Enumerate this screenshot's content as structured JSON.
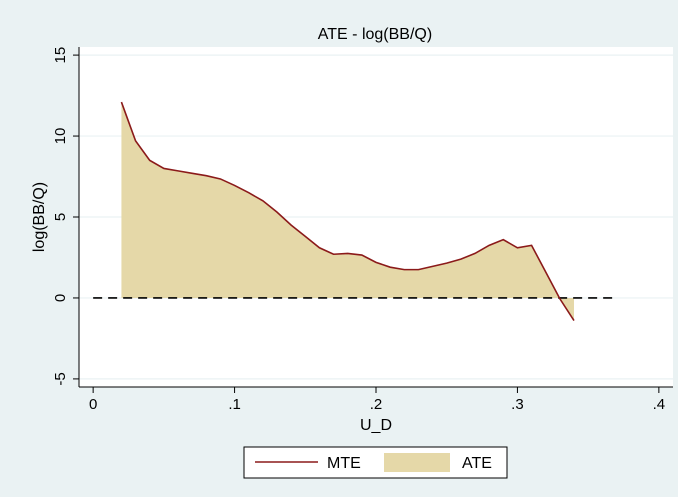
{
  "chart_data": {
    "type": "area",
    "title": "ATE - log(BB/Q)",
    "xlabel": "U_D",
    "ylabel": "log(BB/Q)",
    "xlim": [
      -0.01,
      0.41
    ],
    "ylim": [
      -5.5,
      15.5
    ],
    "xticks": [
      0,
      0.1,
      0.2,
      0.3,
      0.4
    ],
    "xtick_labels": [
      "0",
      ".1",
      ".2",
      ".3",
      ".4"
    ],
    "yticks": [
      -5,
      0,
      5,
      10,
      15
    ],
    "ytick_labels": [
      "-5",
      "0",
      "5",
      "10",
      "15"
    ],
    "grid": true,
    "legend_position": "bottom",
    "reference_line": {
      "y": 0,
      "x_range": [
        0,
        0.37
      ],
      "style": "dashed"
    },
    "series": [
      {
        "name": "MTE",
        "type": "line",
        "color": "#8b1a1a",
        "x": [
          0.02,
          0.03,
          0.04,
          0.05,
          0.06,
          0.07,
          0.08,
          0.09,
          0.1,
          0.11,
          0.12,
          0.13,
          0.14,
          0.15,
          0.16,
          0.17,
          0.18,
          0.19,
          0.2,
          0.21,
          0.22,
          0.23,
          0.24,
          0.25,
          0.26,
          0.27,
          0.28,
          0.29,
          0.3,
          0.31,
          0.32,
          0.33,
          0.34
        ],
        "y": [
          12.1,
          9.7,
          8.5,
          8.0,
          7.85,
          7.7,
          7.55,
          7.35,
          6.95,
          6.5,
          6.0,
          5.3,
          4.5,
          3.8,
          3.1,
          2.7,
          2.75,
          2.65,
          2.2,
          1.9,
          1.75,
          1.75,
          1.95,
          2.15,
          2.4,
          2.75,
          3.25,
          3.6,
          3.1,
          3.25,
          1.6,
          -0.05,
          -1.4
        ]
      },
      {
        "name": "ATE",
        "type": "area",
        "color": "#e5d8a8",
        "x": [
          0.02,
          0.03,
          0.04,
          0.05,
          0.06,
          0.07,
          0.08,
          0.09,
          0.1,
          0.11,
          0.12,
          0.13,
          0.14,
          0.15,
          0.16,
          0.17,
          0.18,
          0.19,
          0.2,
          0.21,
          0.22,
          0.23,
          0.24,
          0.25,
          0.26,
          0.27,
          0.28,
          0.29,
          0.3,
          0.31,
          0.32,
          0.33,
          0.34
        ],
        "y": [
          12.1,
          9.7,
          8.5,
          8.0,
          7.85,
          7.7,
          7.55,
          7.35,
          6.95,
          6.5,
          6.0,
          5.3,
          4.5,
          3.8,
          3.1,
          2.7,
          2.75,
          2.65,
          2.2,
          1.9,
          1.75,
          1.75,
          1.95,
          2.15,
          2.4,
          2.75,
          3.25,
          3.6,
          3.1,
          3.25,
          1.6,
          -0.05,
          -1.4
        ]
      }
    ]
  }
}
